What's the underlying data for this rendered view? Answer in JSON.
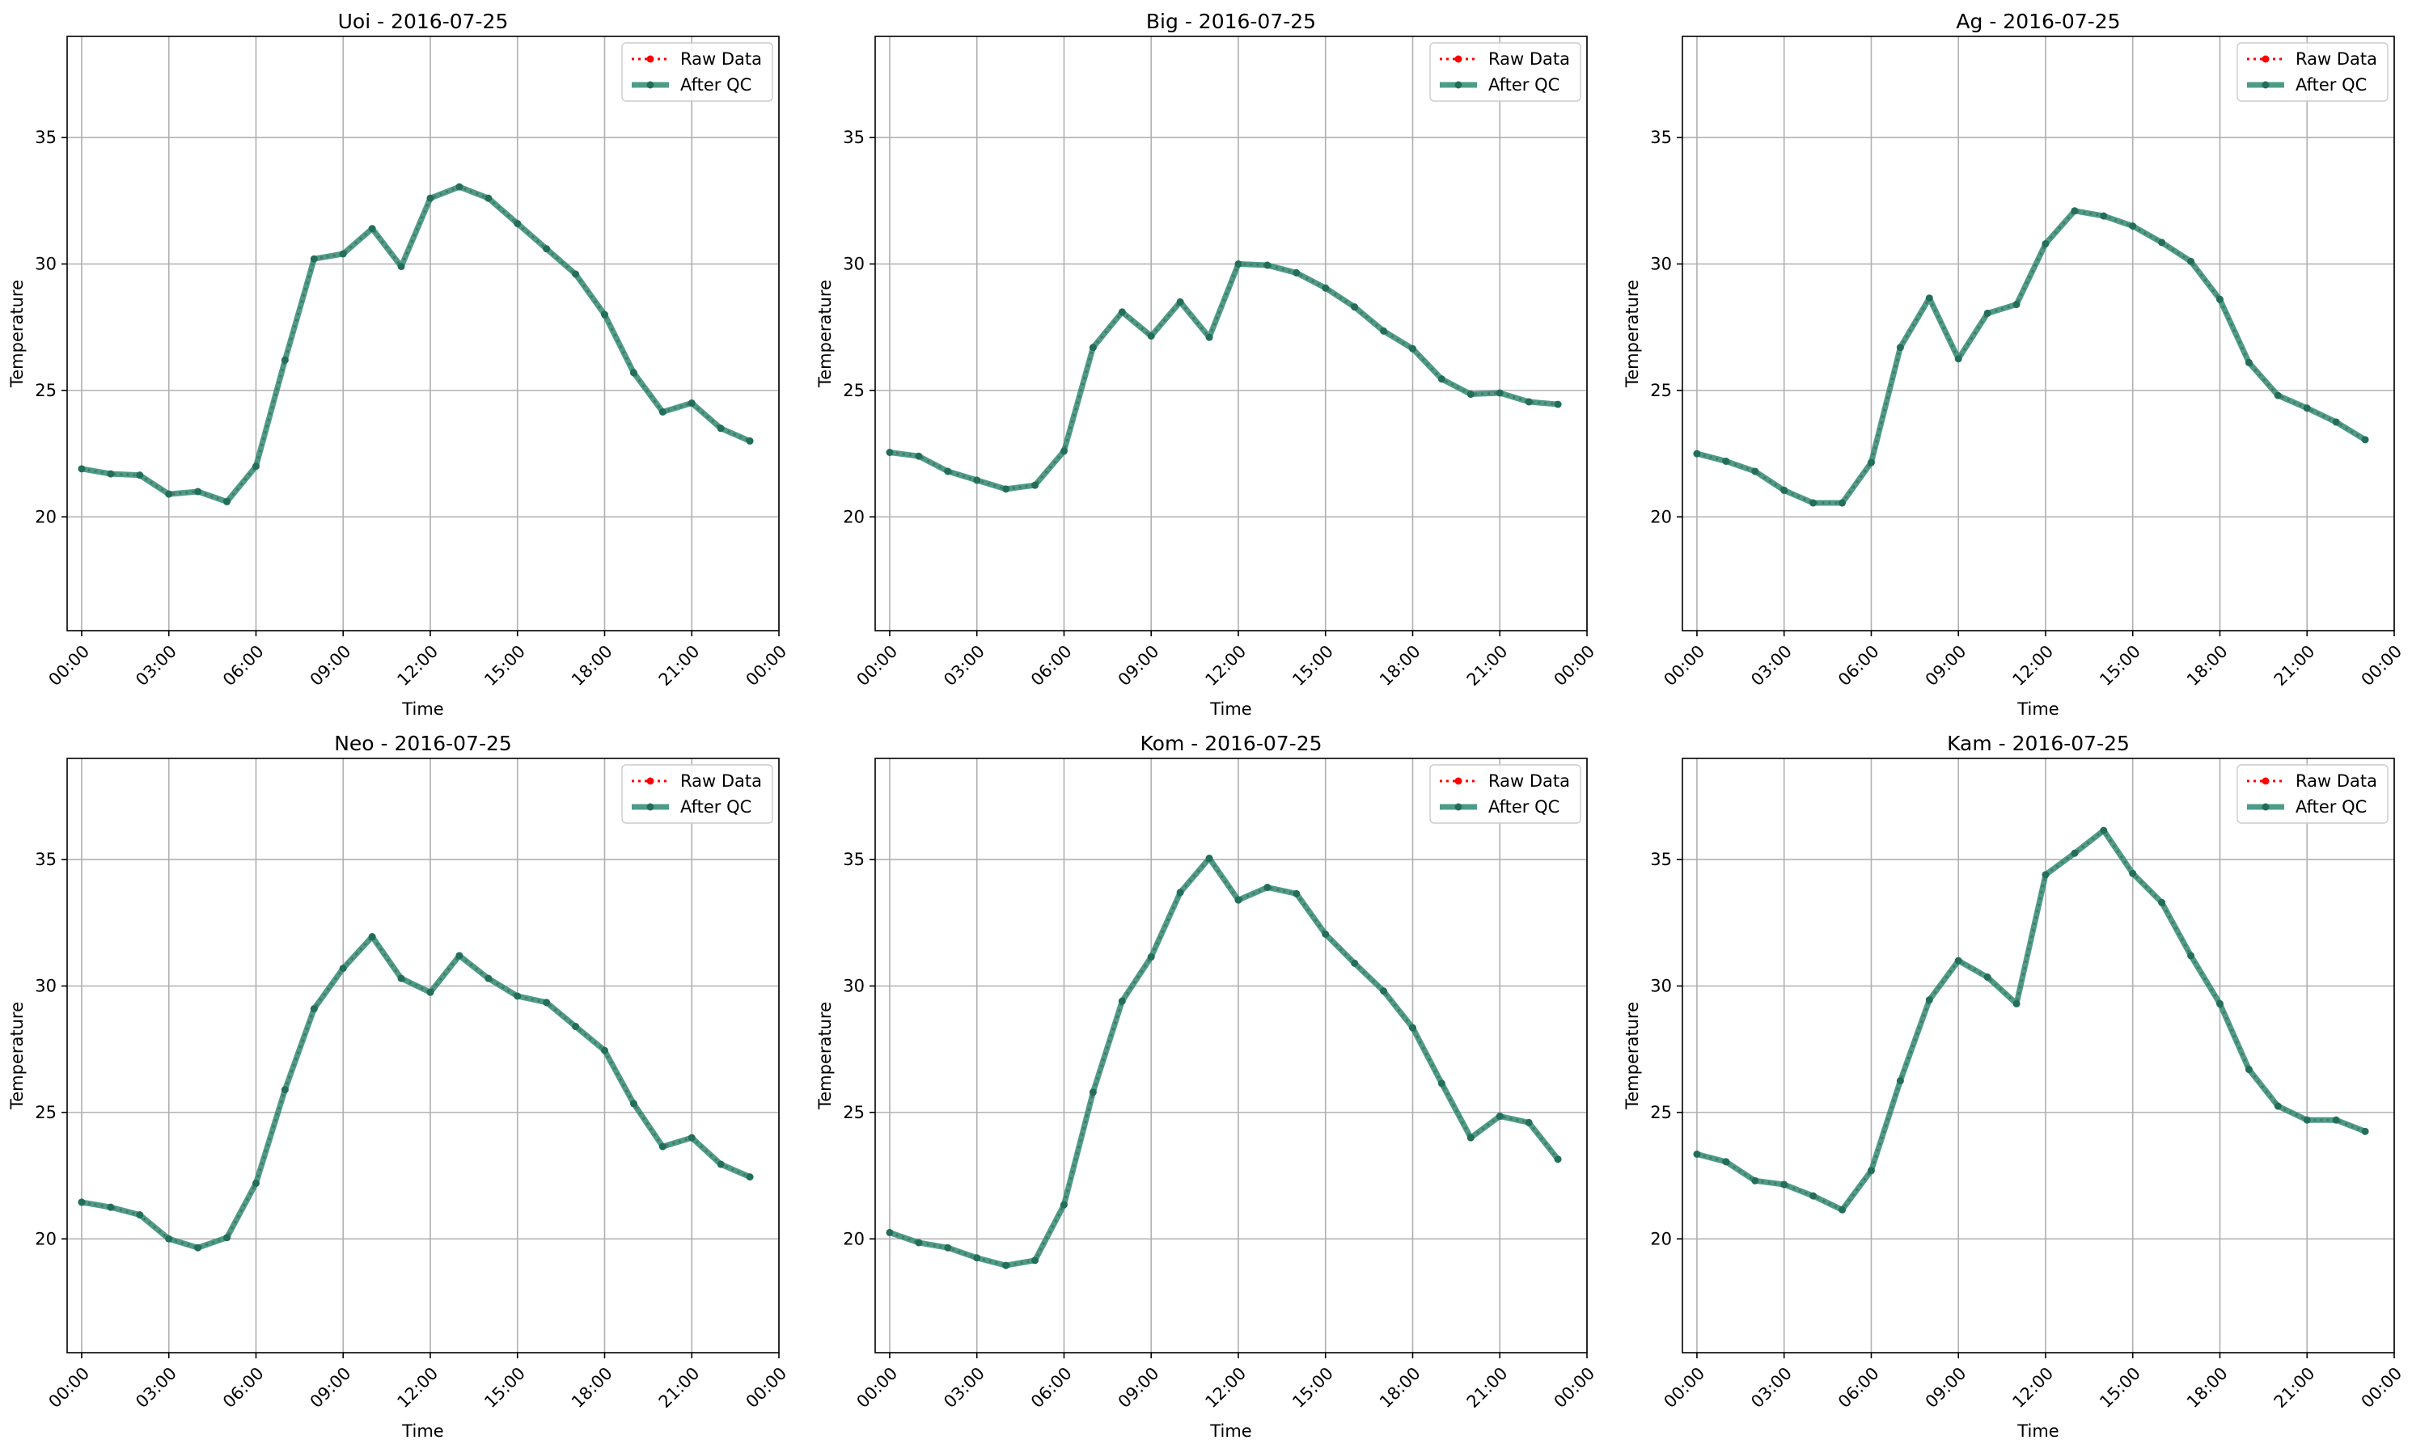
{
  "legend": {
    "raw_label": "Raw Data",
    "qc_label": "After QC"
  },
  "colors": {
    "raw": "#ff0000",
    "qc": "#2e8b73",
    "qc_marker": "#236e5a",
    "grid": "#b0b0b0",
    "axis": "#000000"
  },
  "chart_data": [
    {
      "type": "line",
      "title": "Uoi - 2016-07-25",
      "xlabel": "Time",
      "ylabel": "Temperature",
      "x_tick_labels": [
        "00:00",
        "03:00",
        "06:00",
        "09:00",
        "12:00",
        "15:00",
        "18:00",
        "21:00",
        "00:00"
      ],
      "y_ticks": [
        20,
        25,
        30,
        35
      ],
      "ylim": [
        15.5,
        39.0
      ],
      "grid": true,
      "legend_placement": "top-right",
      "x_hours": [
        0,
        1,
        2,
        3,
        4,
        5,
        6,
        7,
        8,
        9,
        10,
        11,
        12,
        13,
        14,
        15,
        16,
        17,
        18,
        19,
        20,
        21,
        22,
        23
      ],
      "series": [
        {
          "name": "Raw Data",
          "values": [
            21.9,
            21.7,
            21.65,
            20.9,
            21.0,
            20.6,
            22.0,
            26.2,
            30.2,
            30.4,
            31.4,
            29.9,
            32.6,
            33.05,
            32.6,
            31.6,
            30.6,
            29.6,
            28.0,
            25.7,
            24.15,
            24.5,
            23.5,
            23.0
          ]
        },
        {
          "name": "After QC",
          "values": [
            21.9,
            21.7,
            21.65,
            20.9,
            21.0,
            20.6,
            22.0,
            26.2,
            30.2,
            30.4,
            31.4,
            29.9,
            32.6,
            33.05,
            32.6,
            31.6,
            30.6,
            29.6,
            28.0,
            25.7,
            24.15,
            24.5,
            23.5,
            23.0
          ]
        }
      ]
    },
    {
      "type": "line",
      "title": "Big - 2016-07-25",
      "xlabel": "Time",
      "ylabel": "Temperature",
      "x_tick_labels": [
        "00:00",
        "03:00",
        "06:00",
        "09:00",
        "12:00",
        "15:00",
        "18:00",
        "21:00",
        "00:00"
      ],
      "y_ticks": [
        20,
        25,
        30,
        35
      ],
      "ylim": [
        15.5,
        39.0
      ],
      "grid": true,
      "legend_placement": "top-right",
      "x_hours": [
        0,
        1,
        2,
        3,
        4,
        5,
        6,
        7,
        8,
        9,
        10,
        11,
        12,
        13,
        14,
        15,
        16,
        17,
        18,
        19,
        20,
        21,
        22,
        23
      ],
      "series": [
        {
          "name": "Raw Data",
          "values": [
            22.55,
            22.4,
            21.8,
            21.45,
            21.1,
            21.25,
            22.6,
            26.7,
            28.1,
            27.15,
            28.5,
            27.1,
            30.0,
            29.95,
            29.65,
            29.05,
            28.3,
            27.35,
            26.65,
            25.45,
            24.85,
            24.9,
            24.55,
            24.45
          ]
        },
        {
          "name": "After QC",
          "values": [
            22.55,
            22.4,
            21.8,
            21.45,
            21.1,
            21.25,
            22.6,
            26.7,
            28.1,
            27.15,
            28.5,
            27.1,
            30.0,
            29.95,
            29.65,
            29.05,
            28.3,
            27.35,
            26.65,
            25.45,
            24.85,
            24.9,
            24.55,
            24.45
          ]
        }
      ]
    },
    {
      "type": "line",
      "title": "Ag - 2016-07-25",
      "xlabel": "Time",
      "ylabel": "Temperature",
      "x_tick_labels": [
        "00:00",
        "03:00",
        "06:00",
        "09:00",
        "12:00",
        "15:00",
        "18:00",
        "21:00",
        "00:00"
      ],
      "y_ticks": [
        20,
        25,
        30,
        35
      ],
      "ylim": [
        15.5,
        39.0
      ],
      "grid": true,
      "legend_placement": "top-right",
      "x_hours": [
        0,
        1,
        2,
        3,
        4,
        5,
        6,
        7,
        8,
        9,
        10,
        11,
        12,
        13,
        14,
        15,
        16,
        17,
        18,
        19,
        20,
        21,
        22,
        23
      ],
      "series": [
        {
          "name": "Raw Data",
          "values": [
            22.5,
            22.2,
            21.8,
            21.05,
            20.55,
            20.55,
            22.15,
            26.7,
            28.65,
            26.25,
            28.05,
            28.4,
            30.8,
            32.1,
            31.9,
            31.5,
            30.85,
            30.1,
            28.6,
            26.1,
            24.8,
            24.3,
            23.75,
            23.05
          ]
        },
        {
          "name": "After QC",
          "values": [
            22.5,
            22.2,
            21.8,
            21.05,
            20.55,
            20.55,
            22.15,
            26.7,
            28.65,
            26.25,
            28.05,
            28.4,
            30.8,
            32.1,
            31.9,
            31.5,
            30.85,
            30.1,
            28.6,
            26.1,
            24.8,
            24.3,
            23.75,
            23.05
          ]
        }
      ]
    },
    {
      "type": "line",
      "title": "Neo - 2016-07-25",
      "xlabel": "Time",
      "ylabel": "Temperature",
      "x_tick_labels": [
        "00:00",
        "03:00",
        "06:00",
        "09:00",
        "12:00",
        "15:00",
        "18:00",
        "21:00",
        "00:00"
      ],
      "y_ticks": [
        20,
        25,
        30,
        35
      ],
      "ylim": [
        15.5,
        39.0
      ],
      "grid": true,
      "legend_placement": "top-right",
      "x_hours": [
        0,
        1,
        2,
        3,
        4,
        5,
        6,
        7,
        8,
        9,
        10,
        11,
        12,
        13,
        14,
        15,
        16,
        17,
        18,
        19,
        20,
        21,
        22,
        23
      ],
      "series": [
        {
          "name": "Raw Data",
          "values": [
            21.45,
            21.25,
            20.95,
            20.0,
            19.65,
            20.05,
            22.2,
            25.9,
            29.1,
            30.7,
            31.95,
            30.3,
            29.75,
            31.2,
            30.3,
            29.6,
            29.35,
            28.4,
            27.45,
            25.35,
            23.65,
            24.0,
            22.95,
            22.45
          ]
        },
        {
          "name": "After QC",
          "values": [
            21.45,
            21.25,
            20.95,
            20.0,
            19.65,
            20.05,
            22.2,
            25.9,
            29.1,
            30.7,
            31.95,
            30.3,
            29.75,
            31.2,
            30.3,
            29.6,
            29.35,
            28.4,
            27.45,
            25.35,
            23.65,
            24.0,
            22.95,
            22.45
          ]
        }
      ]
    },
    {
      "type": "line",
      "title": "Kom - 2016-07-25",
      "xlabel": "Time",
      "ylabel": "Temperature",
      "x_tick_labels": [
        "00:00",
        "03:00",
        "06:00",
        "09:00",
        "12:00",
        "15:00",
        "18:00",
        "21:00",
        "00:00"
      ],
      "y_ticks": [
        20,
        25,
        30,
        35
      ],
      "ylim": [
        15.5,
        39.0
      ],
      "grid": true,
      "legend_placement": "top-right",
      "x_hours": [
        0,
        1,
        2,
        3,
        4,
        5,
        6,
        7,
        8,
        9,
        10,
        11,
        12,
        13,
        14,
        15,
        16,
        17,
        18,
        19,
        20,
        21,
        22,
        23
      ],
      "series": [
        {
          "name": "Raw Data",
          "values": [
            20.25,
            19.85,
            19.65,
            19.25,
            18.95,
            19.15,
            21.35,
            25.8,
            29.4,
            31.15,
            33.7,
            35.05,
            33.4,
            33.9,
            33.65,
            32.05,
            30.9,
            29.8,
            28.35,
            26.15,
            24.0,
            24.85,
            24.6,
            23.15
          ]
        },
        {
          "name": "After QC",
          "values": [
            20.25,
            19.85,
            19.65,
            19.25,
            18.95,
            19.15,
            21.35,
            25.8,
            29.4,
            31.15,
            33.7,
            35.05,
            33.4,
            33.9,
            33.65,
            32.05,
            30.9,
            29.8,
            28.35,
            26.15,
            24.0,
            24.85,
            24.6,
            23.15
          ]
        }
      ]
    },
    {
      "type": "line",
      "title": "Kam - 2016-07-25",
      "xlabel": "Time",
      "ylabel": "Temperature",
      "x_tick_labels": [
        "00:00",
        "03:00",
        "06:00",
        "09:00",
        "12:00",
        "15:00",
        "18:00",
        "21:00",
        "00:00"
      ],
      "y_ticks": [
        20,
        25,
        30,
        35
      ],
      "ylim": [
        15.5,
        39.0
      ],
      "grid": true,
      "legend_placement": "top-right",
      "x_hours": [
        0,
        1,
        2,
        3,
        4,
        5,
        6,
        7,
        8,
        9,
        10,
        11,
        12,
        13,
        14,
        15,
        16,
        17,
        18,
        19,
        20,
        21,
        22,
        23
      ],
      "series": [
        {
          "name": "Raw Data",
          "values": [
            23.35,
            23.05,
            22.3,
            22.15,
            21.7,
            21.15,
            22.7,
            26.25,
            29.45,
            31.0,
            30.35,
            29.3,
            34.4,
            35.25,
            36.15,
            34.45,
            33.3,
            31.2,
            29.3,
            26.7,
            25.25,
            24.7,
            24.7,
            24.25
          ]
        },
        {
          "name": "After QC",
          "values": [
            23.35,
            23.05,
            22.3,
            22.15,
            21.7,
            21.15,
            22.7,
            26.25,
            29.45,
            31.0,
            30.35,
            29.3,
            34.4,
            35.25,
            36.15,
            34.45,
            33.3,
            31.2,
            29.3,
            26.7,
            25.25,
            24.7,
            24.7,
            24.25
          ]
        }
      ]
    }
  ]
}
